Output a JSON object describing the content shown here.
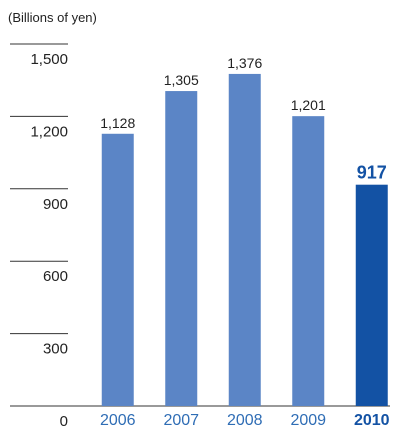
{
  "chart_data": {
    "type": "bar",
    "unit_label": "(Billions of yen)",
    "categories": [
      "2006",
      "2007",
      "2008",
      "2009",
      "2010"
    ],
    "values": [
      1128,
      1305,
      1376,
      1201,
      917
    ],
    "value_labels": [
      "1,128",
      "1,305",
      "1,376",
      "1,201",
      "917"
    ],
    "highlight_index": 4,
    "ylim": [
      0,
      1500
    ],
    "yticks": [
      0,
      300,
      600,
      900,
      1200,
      1500
    ],
    "ytick_labels": [
      "0",
      "300",
      "600",
      "900",
      "1,200",
      "1,500"
    ],
    "colors": {
      "bar": "#5b85c6",
      "bar_highlight": "#1352a4",
      "xtick": "#2f6db5",
      "xtick_highlight": "#1352a4",
      "gridline": "#333333",
      "label_highlight": "#1352a4"
    }
  }
}
